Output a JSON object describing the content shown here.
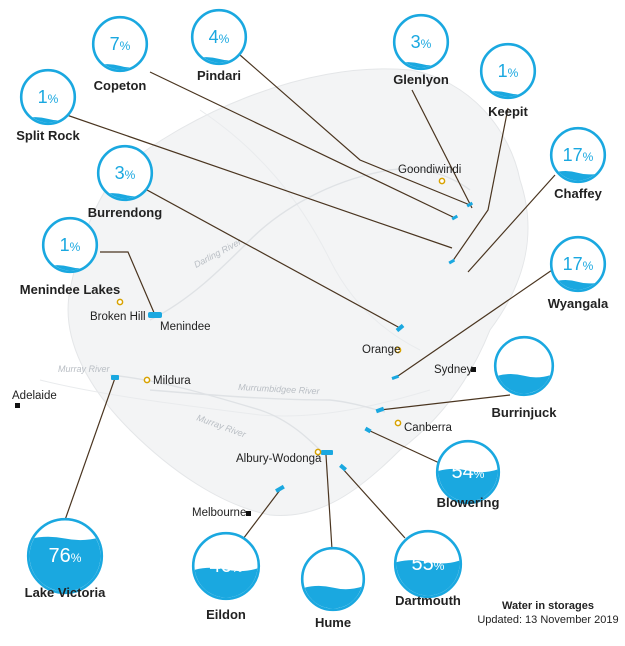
{
  "colors": {
    "accent": "#1aa8e0",
    "water_light": "#cfeefb",
    "leader": "#4a3520",
    "city_marker": "#d8a200",
    "capital_marker": "#111111",
    "storage_marker": "#1aa8e0",
    "land": "#f3f4f5",
    "text": "#222222"
  },
  "storages": [
    {
      "name": "Copeton",
      "percent": 7,
      "pct_text": "7",
      "sign": "%"
    },
    {
      "name": "Pindari",
      "percent": 4,
      "pct_text": "4",
      "sign": "%"
    },
    {
      "name": "Glenlyon",
      "percent": 3,
      "pct_text": "3",
      "sign": "%"
    },
    {
      "name": "Keepit",
      "percent": 1,
      "pct_text": "1",
      "sign": "%"
    },
    {
      "name": "Split Rock",
      "percent": 1,
      "pct_text": "1",
      "sign": "%"
    },
    {
      "name": "Chaffey",
      "percent": 17,
      "pct_text": "17",
      "sign": "%"
    },
    {
      "name": "Burrendong",
      "percent": 3,
      "pct_text": "3",
      "sign": "%"
    },
    {
      "name": "Menindee Lakes",
      "percent": 1,
      "pct_text": "1",
      "sign": "%"
    },
    {
      "name": "Wyangala",
      "percent": 17,
      "pct_text": "17",
      "sign": "%"
    },
    {
      "name": "Burrinjuck",
      "percent": 34,
      "pct_text": "34",
      "sign": "%"
    },
    {
      "name": "Blowering",
      "percent": 54,
      "pct_text": "54",
      "sign": "%"
    },
    {
      "name": "Lake Victoria",
      "percent": 76,
      "pct_text": "76",
      "sign": "%"
    },
    {
      "name": "Eildon",
      "percent": 46,
      "pct_text": "46",
      "sign": "%"
    },
    {
      "name": "Hume",
      "percent": 37,
      "pct_text": "37",
      "sign": "%"
    },
    {
      "name": "Dartmouth",
      "percent": 55,
      "pct_text": "55",
      "sign": "%"
    }
  ],
  "places": [
    {
      "name": "Goondiwindi",
      "kind": "town"
    },
    {
      "name": "Broken Hill",
      "kind": "town"
    },
    {
      "name": "Menindee",
      "kind": "town"
    },
    {
      "name": "Mildura",
      "kind": "town"
    },
    {
      "name": "Orange",
      "kind": "town"
    },
    {
      "name": "Canberra",
      "kind": "town"
    },
    {
      "name": "Albury-Wodonga",
      "kind": "town"
    },
    {
      "name": "Adelaide",
      "kind": "capital"
    },
    {
      "name": "Sydney",
      "kind": "capital"
    },
    {
      "name": "Melbourne",
      "kind": "capital"
    }
  ],
  "rivers": [
    "Darling River",
    "Murray River",
    "Murrumbidgee River",
    "Murray River"
  ],
  "footer": {
    "title": "Water in storages",
    "updated": "Updated: 13 November 2019"
  }
}
